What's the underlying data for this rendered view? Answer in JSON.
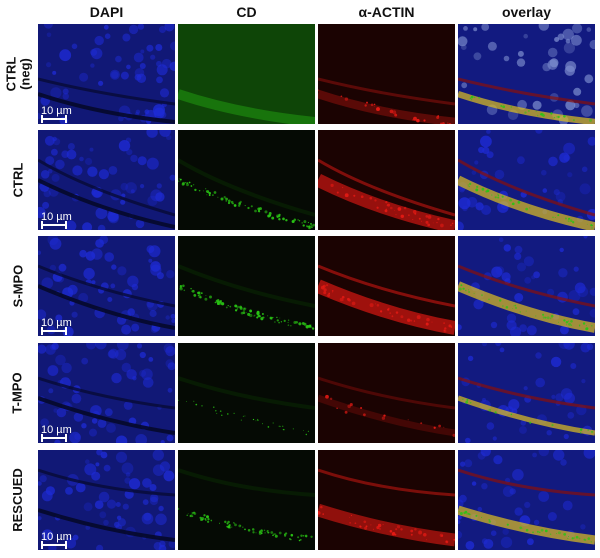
{
  "columns": [
    "DAPI",
    "CD",
    "α-ACTIN",
    "overlay"
  ],
  "rows": [
    {
      "label_lines": [
        "CTRL",
        "(neg)"
      ],
      "scale_bar": "10 µm"
    },
    {
      "label_lines": [
        "CTRL"
      ],
      "scale_bar": "10 µm"
    },
    {
      "label_lines": [
        "S-MPO"
      ],
      "scale_bar": "10 µm"
    },
    {
      "label_lines": [
        "T-MPO"
      ],
      "scale_bar": "10 µm"
    },
    {
      "label_lines": [
        "RESCUED"
      ],
      "scale_bar": "10 µm"
    }
  ],
  "channel_colors": {
    "dapi": "#1e2bd6",
    "cd": "#29c414",
    "actin": "#e31a14",
    "overlay_layer": "#e0c020"
  }
}
